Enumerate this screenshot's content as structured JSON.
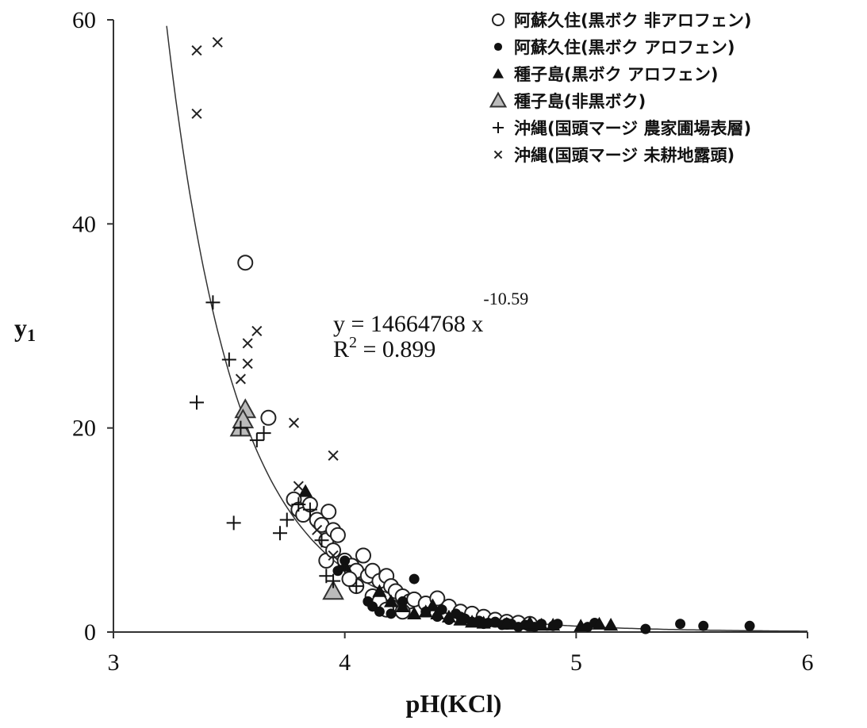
{
  "chart_data": {
    "type": "scatter",
    "xlabel": "pH(KCl)",
    "ylabel": "y",
    "ylabel_sub": "1",
    "xlim": [
      3,
      6
    ],
    "ylim": [
      0,
      60
    ],
    "xticks": [
      "3",
      "4",
      "5",
      "6"
    ],
    "yticks": [
      "0",
      "20",
      "40",
      "60"
    ],
    "grid": false,
    "legend_position": "top-right",
    "annotation": {
      "equation_prefix": "y = 14664768 x",
      "equation_exponent": "-10.59",
      "r2_prefix": "R",
      "r2_sup": "2",
      "r2_value": " = 0.899"
    },
    "trendline": {
      "type": "power",
      "a": 14664768,
      "b": -10.59,
      "x_range": [
        3.22,
        6.0
      ]
    },
    "series": [
      {
        "name": "阿蘇久住(黒ボク 非アロフェン)",
        "marker": "open-circle",
        "points": [
          [
            3.57,
            36.2
          ],
          [
            3.67,
            21.0
          ],
          [
            3.78,
            13.0
          ],
          [
            3.8,
            12.0
          ],
          [
            3.82,
            11.5
          ],
          [
            3.85,
            12.5
          ],
          [
            3.88,
            11.0
          ],
          [
            3.9,
            10.5
          ],
          [
            3.92,
            9.0
          ],
          [
            3.93,
            11.8
          ],
          [
            3.95,
            10.0
          ],
          [
            3.97,
            9.5
          ],
          [
            3.92,
            7.0
          ],
          [
            3.95,
            8.0
          ],
          [
            4.0,
            7.0
          ],
          [
            4.03,
            6.5
          ],
          [
            4.05,
            6.0
          ],
          [
            4.08,
            7.5
          ],
          [
            4.1,
            5.5
          ],
          [
            4.12,
            6.0
          ],
          [
            4.15,
            5.0
          ],
          [
            4.18,
            5.5
          ],
          [
            4.2,
            4.5
          ],
          [
            4.22,
            4.0
          ],
          [
            4.25,
            3.5
          ],
          [
            4.28,
            3.0
          ],
          [
            4.3,
            3.2
          ],
          [
            4.35,
            2.8
          ],
          [
            4.4,
            3.3
          ],
          [
            4.45,
            2.5
          ],
          [
            4.5,
            2.0
          ],
          [
            4.55,
            1.8
          ],
          [
            4.6,
            1.5
          ],
          [
            4.65,
            1.2
          ],
          [
            4.7,
            1.0
          ],
          [
            4.75,
            0.9
          ],
          [
            4.8,
            0.8
          ],
          [
            4.2,
            2.5
          ],
          [
            4.25,
            2.0
          ],
          [
            4.05,
            4.5
          ],
          [
            4.12,
            3.5
          ],
          [
            4.15,
            3.0
          ],
          [
            4.18,
            2.2
          ],
          [
            4.02,
            5.2
          ]
        ]
      },
      {
        "name": "阿蘇久住(黒ボク アロフェン)",
        "marker": "filled-circle",
        "points": [
          [
            3.97,
            6.0
          ],
          [
            4.0,
            7.0
          ],
          [
            4.1,
            3.0
          ],
          [
            4.12,
            2.5
          ],
          [
            4.15,
            2.0
          ],
          [
            4.2,
            1.8
          ],
          [
            4.25,
            3.0
          ],
          [
            4.3,
            5.2
          ],
          [
            4.35,
            2.0
          ],
          [
            4.4,
            1.5
          ],
          [
            4.45,
            1.2
          ],
          [
            4.5,
            1.5
          ],
          [
            4.55,
            1.0
          ],
          [
            4.6,
            0.8
          ],
          [
            4.65,
            1.0
          ],
          [
            4.7,
            0.9
          ],
          [
            4.75,
            0.5
          ],
          [
            4.78,
            0.7
          ],
          [
            4.8,
            0.6
          ],
          [
            4.85,
            0.8
          ],
          [
            4.9,
            0.6
          ],
          [
            5.05,
            0.5
          ],
          [
            5.08,
            0.9
          ],
          [
            5.3,
            0.3
          ],
          [
            5.45,
            0.8
          ],
          [
            5.55,
            0.6
          ],
          [
            5.75,
            0.6
          ],
          [
            4.42,
            2.2
          ],
          [
            4.48,
            1.8
          ],
          [
            4.52,
            1.3
          ],
          [
            4.58,
            1.1
          ],
          [
            4.62,
            0.9
          ],
          [
            4.68,
            0.7
          ],
          [
            4.72,
            0.8
          ],
          [
            4.82,
            0.5
          ],
          [
            4.92,
            0.8
          ]
        ]
      },
      {
        "name": "種子島(黒ボク アロフェン)",
        "marker": "filled-triangle",
        "points": [
          [
            3.83,
            13.8
          ],
          [
            4.0,
            6.5
          ],
          [
            4.15,
            4.0
          ],
          [
            4.2,
            3.0
          ],
          [
            4.25,
            2.5
          ],
          [
            4.35,
            2.0
          ],
          [
            4.4,
            1.8
          ],
          [
            4.45,
            1.5
          ],
          [
            4.5,
            1.2
          ],
          [
            4.55,
            1.0
          ],
          [
            4.6,
            0.9
          ],
          [
            4.7,
            0.8
          ],
          [
            4.8,
            0.9
          ],
          [
            4.85,
            0.7
          ],
          [
            4.9,
            0.7
          ],
          [
            5.02,
            0.6
          ],
          [
            5.1,
            0.8
          ],
          [
            5.15,
            0.7
          ],
          [
            4.3,
            1.8
          ],
          [
            4.38,
            2.6
          ]
        ]
      },
      {
        "name": "種子島(非黒ボク)",
        "marker": "shaded-triangle",
        "points": [
          [
            3.55,
            20.0
          ],
          [
            3.57,
            21.8
          ],
          [
            3.56,
            20.8
          ],
          [
            3.95,
            4.0
          ]
        ]
      },
      {
        "name": "沖縄(国頭マージ 農家圃場表層)",
        "marker": "plus",
        "points": [
          [
            3.36,
            22.5
          ],
          [
            3.43,
            32.3
          ],
          [
            3.5,
            26.7
          ],
          [
            3.52,
            10.7
          ],
          [
            3.55,
            20.0
          ],
          [
            3.62,
            18.8
          ],
          [
            3.65,
            19.5
          ],
          [
            3.72,
            9.7
          ],
          [
            3.75,
            11.0
          ],
          [
            3.8,
            12.5
          ],
          [
            3.85,
            12.0
          ],
          [
            3.9,
            9.0
          ],
          [
            3.92,
            5.5
          ],
          [
            3.95,
            5.0
          ],
          [
            4.0,
            6.5
          ],
          [
            4.05,
            4.5
          ]
        ]
      },
      {
        "name": "沖縄(国頭マージ 未耕地露頭)",
        "marker": "x",
        "points": [
          [
            3.36,
            57.0
          ],
          [
            3.45,
            57.8
          ],
          [
            3.36,
            50.8
          ],
          [
            3.55,
            24.8
          ],
          [
            3.58,
            28.3
          ],
          [
            3.58,
            26.3
          ],
          [
            3.62,
            29.5
          ],
          [
            3.78,
            20.5
          ],
          [
            3.95,
            17.3
          ],
          [
            3.8,
            14.3
          ],
          [
            3.88,
            10.0
          ],
          [
            3.95,
            7.5
          ]
        ]
      }
    ]
  }
}
